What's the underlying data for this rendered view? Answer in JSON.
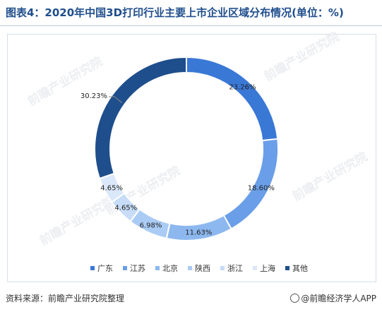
{
  "title": "图表4：2020年中国3D打印行业主要上市企业区域分布情况(单位：%)",
  "source": "资料来源：前瞻产业研究院整理",
  "brand": "@前瞻经济学人APP",
  "watermark": "前瞻产业研究院",
  "chart_data": {
    "type": "pie",
    "donut": true,
    "categories": [
      "广东",
      "江苏",
      "北京",
      "陕西",
      "浙江",
      "上海",
      "其他"
    ],
    "values": [
      23.26,
      18.6,
      11.63,
      6.98,
      4.65,
      4.65,
      30.23
    ],
    "value_labels": [
      "23.26%",
      "18.60%",
      "11.63%",
      "6.98%",
      "4.65%",
      "4.65%",
      "30.23%"
    ],
    "colors": [
      "#3a78d6",
      "#6a9ee8",
      "#8db8ef",
      "#aacbf4",
      "#c6dcf7",
      "#dbe8fa",
      "#1f4e8c"
    ],
    "legend_position": "bottom"
  }
}
